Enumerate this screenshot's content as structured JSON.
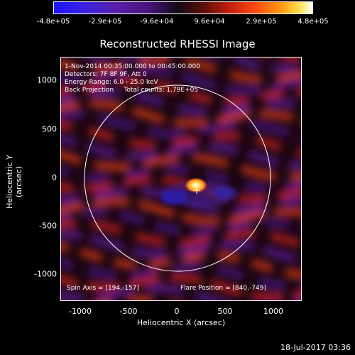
{
  "colorbar": {
    "ticks": [
      "-4.8e+05",
      "-2.9e+05",
      "-9.6e+04",
      "9.6e+04",
      "2.9e+05",
      "4.8e+05"
    ]
  },
  "title": "Reconstructed RHESSI Image",
  "info": {
    "line1": "1-Nov-2014 00:35:00.000 to 00:45:00.000",
    "line2": "Detectors: 7F 8F 9F, Att 0",
    "line3": "Energy Range: 6.0 - 25.0 keV",
    "line4": "Back Projection     Total counts: 1.79E+05",
    "spin_axis": "Spin Axis = [194,-157]",
    "flare_position": "Flare Position = [840,-749]"
  },
  "axes": {
    "xlabel": "Heliocentric X (arcsec)",
    "ylabel": "Heliocentric Y (arcsec)",
    "xticks": [
      "-1000",
      "-500",
      "0",
      "500",
      "1000"
    ],
    "yticks": [
      "1000",
      "500",
      "0",
      "-500",
      "-1000"
    ]
  },
  "timestamp": "18-Jul-2017 03:36"
}
